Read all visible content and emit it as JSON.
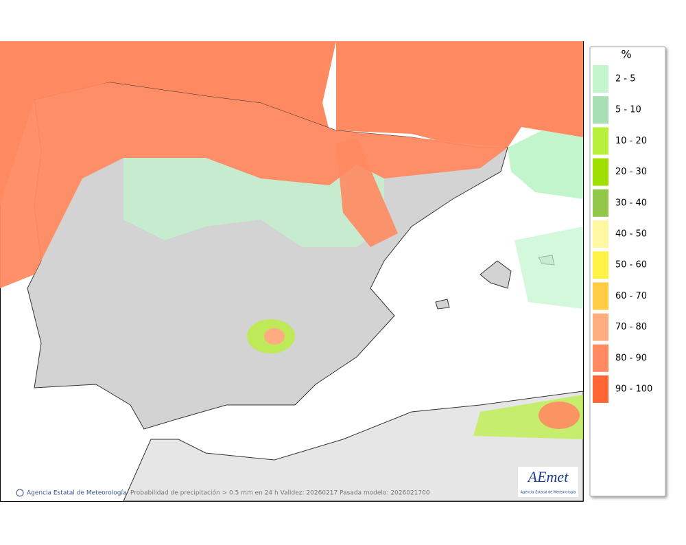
{
  "legend": {
    "title": "%",
    "items": [
      {
        "label": "2 - 5",
        "color": "#c2f5cc"
      },
      {
        "label": "5 - 10",
        "color": "#a8dfb4"
      },
      {
        "label": "10 - 20",
        "color": "#b9f03c"
      },
      {
        "label": "20 - 30",
        "color": "#a0e000"
      },
      {
        "label": "30 - 40",
        "color": "#92c84a"
      },
      {
        "label": "40 - 50",
        "color": "#fff8a0"
      },
      {
        "label": "50 - 60",
        "color": "#fff348"
      },
      {
        "label": "60 - 70",
        "color": "#ffcc44"
      },
      {
        "label": "70 - 80",
        "color": "#ffac80"
      },
      {
        "label": "80 - 90",
        "color": "#ff8a62"
      },
      {
        "label": "90 - 100",
        "color": "#ff6633"
      }
    ]
  },
  "footer": {
    "agency": "Agencia Estatal de Meteorología",
    "caption": "Probabilidad de precipitación > 0.5 mm en 24 h Validez: 20260217 Pasada modelo: 2026021700"
  },
  "logo": {
    "name": "AEmet",
    "subtitle": "Agencia Estatal de Meteorología"
  }
}
